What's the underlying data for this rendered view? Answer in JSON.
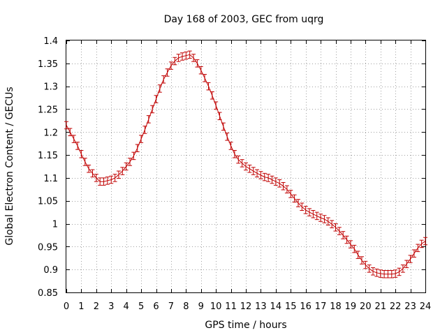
{
  "chart_data": {
    "type": "line",
    "title": "Day 168 of 2003, GEC from uqrg",
    "xlabel": "GPS time / hours",
    "ylabel": "Global Electron Content / GECUs",
    "xlim": [
      0,
      24
    ],
    "ylim": [
      0.85,
      1.4
    ],
    "x_ticks": [
      0,
      1,
      2,
      3,
      4,
      5,
      6,
      7,
      8,
      9,
      10,
      11,
      12,
      13,
      14,
      15,
      16,
      17,
      18,
      19,
      20,
      21,
      22,
      23,
      24
    ],
    "y_ticks": [
      0.85,
      0.9,
      0.95,
      1.0,
      1.05,
      1.1,
      1.15,
      1.2,
      1.25,
      1.3,
      1.35,
      1.4
    ],
    "y_tick_labels": [
      "0.85",
      "0.9",
      "0.95",
      "1",
      "1.05",
      "1.1",
      "1.15",
      "1.2",
      "1.25",
      "1.3",
      "1.35",
      "1.4"
    ],
    "grid": true,
    "series_color": "#c00000",
    "error_half_width": 0.008,
    "series": [
      {
        "x": [
          0,
          0.25,
          0.5,
          0.75,
          1,
          1.25,
          1.5,
          1.75,
          2,
          2.25,
          2.5,
          2.75,
          3,
          3.25,
          3.5,
          3.75,
          4,
          4.25,
          4.5,
          4.75,
          5,
          5.25,
          5.5,
          5.75,
          6,
          6.25,
          6.5,
          6.75,
          7,
          7.25,
          7.5,
          7.75,
          8,
          8.25,
          8.5,
          8.75,
          9,
          9.25,
          9.5,
          9.75,
          10,
          10.25,
          10.5,
          10.75,
          11,
          11.25,
          11.5,
          11.75,
          12,
          12.25,
          12.5,
          12.75,
          13,
          13.25,
          13.5,
          13.75,
          14,
          14.25,
          14.5,
          14.75,
          15,
          15.25,
          15.5,
          15.75,
          16,
          16.25,
          16.5,
          16.75,
          17,
          17.25,
          17.5,
          17.75,
          18,
          18.25,
          18.5,
          18.75,
          19,
          19.25,
          19.5,
          19.75,
          20,
          20.25,
          20.5,
          20.75,
          21,
          21.25,
          21.5,
          21.75,
          22,
          22.25,
          22.5,
          22.75,
          23,
          23.25,
          23.5,
          23.75,
          24
        ],
        "y": [
          1.215,
          1.2,
          1.185,
          1.17,
          1.152,
          1.135,
          1.12,
          1.11,
          1.1,
          1.092,
          1.092,
          1.094,
          1.096,
          1.1,
          1.107,
          1.115,
          1.125,
          1.135,
          1.148,
          1.165,
          1.185,
          1.205,
          1.228,
          1.25,
          1.272,
          1.295,
          1.315,
          1.33,
          1.345,
          1.355,
          1.362,
          1.365,
          1.367,
          1.369,
          1.362,
          1.35,
          1.335,
          1.318,
          1.3,
          1.28,
          1.258,
          1.235,
          1.212,
          1.19,
          1.17,
          1.152,
          1.14,
          1.132,
          1.125,
          1.12,
          1.115,
          1.11,
          1.106,
          1.102,
          1.1,
          1.096,
          1.092,
          1.088,
          1.082,
          1.075,
          1.065,
          1.055,
          1.045,
          1.037,
          1.03,
          1.025,
          1.021,
          1.017,
          1.013,
          1.01,
          1.005,
          0.999,
          0.992,
          0.984,
          0.975,
          0.965,
          0.955,
          0.945,
          0.932,
          0.92,
          0.91,
          0.902,
          0.896,
          0.893,
          0.891,
          0.89,
          0.89,
          0.89,
          0.891,
          0.895,
          0.902,
          0.912,
          0.923,
          0.935,
          0.947,
          0.956,
          0.962
        ]
      }
    ]
  }
}
